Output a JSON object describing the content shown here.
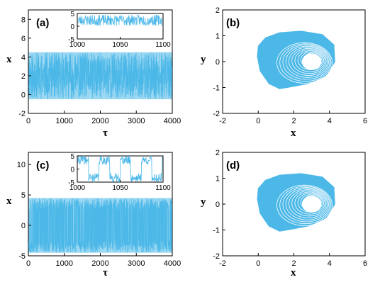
{
  "panels": {
    "a": {
      "label": "(a)",
      "chart_data": {
        "type": "line",
        "xlabel": "τ",
        "ylabel": "x",
        "xlim": [
          0,
          4000
        ],
        "ylim": [
          -2,
          9
        ],
        "xticks": [
          "0",
          "1000",
          "2000",
          "3000",
          "4000"
        ],
        "yticks": [
          "-2",
          "0",
          "2",
          "4",
          "6",
          "8"
        ],
        "series": [
          {
            "color": "#4cb8e8",
            "envelope_min": -0.5,
            "envelope_max": 4.5
          }
        ],
        "inset": {
          "xlim": [
            1000,
            1100
          ],
          "ylim": [
            -5,
            5
          ],
          "xticks": [
            "1000",
            "1050",
            "1100"
          ],
          "yticks": [
            "-5",
            "0",
            "5"
          ],
          "envelope_min": 0.2,
          "envelope_max": 4.5
        }
      }
    },
    "b": {
      "label": "(b)",
      "chart_data": {
        "type": "scatter",
        "xlabel": "x",
        "ylabel": "y",
        "xlim": [
          -2,
          6
        ],
        "ylim": [
          -2,
          2
        ],
        "xticks": [
          "-2",
          "0",
          "2",
          "4",
          "6"
        ],
        "yticks": [
          "-2",
          "-1",
          "0",
          "1",
          "2"
        ],
        "attractor_center": [
          2.6,
          -0.05
        ],
        "attractor_color": "#4cb8e8"
      }
    },
    "c": {
      "label": "(c)",
      "chart_data": {
        "type": "line",
        "xlabel": "τ",
        "ylabel": "x",
        "xlim": [
          0,
          4000
        ],
        "ylim": [
          -5,
          12
        ],
        "xticks": [
          "0",
          "1000",
          "2000",
          "3000",
          "4000"
        ],
        "yticks": [
          "-5",
          "0",
          "5",
          "10"
        ],
        "series": [
          {
            "color": "#4cb8e8",
            "envelope_min": -4.5,
            "envelope_max": 4.5
          }
        ],
        "inset": {
          "xlim": [
            1000,
            1100
          ],
          "ylim": [
            -5,
            5
          ],
          "xticks": [
            "1000",
            "1050",
            "1100"
          ],
          "yticks": [
            "-5",
            "0",
            "5"
          ],
          "envelope_min": -4.5,
          "envelope_max": 4.5
        }
      }
    },
    "d": {
      "label": "(d)",
      "chart_data": {
        "type": "scatter",
        "xlabel": "x",
        "ylabel": "y",
        "xlim": [
          -2,
          6
        ],
        "ylim": [
          -2,
          2
        ],
        "xticks": [
          "-2",
          "0",
          "2",
          "4",
          "6"
        ],
        "yticks": [
          "-2",
          "-1",
          "0",
          "1",
          "2"
        ],
        "attractor_center": [
          2.6,
          -0.05
        ],
        "attractor_color": "#4cb8e8"
      }
    }
  }
}
